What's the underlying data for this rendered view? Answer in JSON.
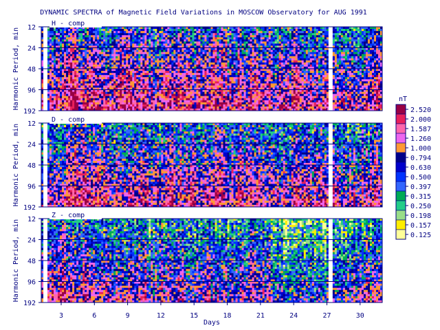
{
  "chart_data": {
    "type": "heatmap",
    "title": "DYNAMIC SPECTRA of Magnetic Field Variations in MOSCOW Observatory for AUG 1991",
    "xlabel": "Days",
    "ylabel": "Harmonic Period, min",
    "x_ticks": [
      "3",
      "6",
      "9",
      "12",
      "15",
      "18",
      "21",
      "24",
      "27",
      "30"
    ],
    "x_tick_values": [
      3,
      6,
      9,
      12,
      15,
      18,
      21,
      24,
      27,
      30
    ],
    "xlim": [
      1.2,
      32
    ],
    "y_ticks": [
      "12",
      "24",
      "48",
      "96",
      "192"
    ],
    "y_scale": "log",
    "colorbar": {
      "unit": "nT",
      "levels": [
        "2.520",
        "2.000",
        "1.587",
        "1.260",
        "1.000",
        "0.794",
        "0.630",
        "0.500",
        "0.397",
        "0.315",
        "0.250",
        "0.198",
        "0.157",
        "0.125"
      ],
      "colors": [
        "#990044",
        "#e8205a",
        "#ff66aa",
        "#ee66ee",
        "#ff9933",
        "#000088",
        "#0000cc",
        "#0033ff",
        "#3366ff",
        "#00aa55",
        "#22cc88",
        "#99dd88",
        "#ffee00",
        "#ffff99"
      ]
    },
    "panels": [
      {
        "label": "H - comp",
        "gaps": [
          [
            1.3,
            1.7
          ],
          [
            27.2,
            27.6
          ]
        ],
        "intensity_trend": [
          0.55,
          0.58,
          0.62,
          0.66,
          0.62,
          0.58,
          0.56,
          0.6,
          0.64,
          0.6,
          0.55,
          0.62,
          0.66,
          0.62,
          0.6,
          0.64,
          0.62,
          0.56,
          0.62,
          0.66,
          0.6,
          0.56,
          0.55,
          0.6,
          0.58,
          0.56,
          0.52,
          0.5,
          0.52,
          0.55,
          0.6,
          0.62
        ]
      },
      {
        "label": "D - comp",
        "gaps": [
          [
            1.3,
            1.7
          ],
          [
            27.2,
            27.6
          ]
        ],
        "intensity_trend": [
          0.5,
          0.54,
          0.58,
          0.6,
          0.58,
          0.54,
          0.52,
          0.54,
          0.58,
          0.56,
          0.52,
          0.58,
          0.6,
          0.58,
          0.56,
          0.58,
          0.56,
          0.52,
          0.56,
          0.6,
          0.56,
          0.52,
          0.5,
          0.54,
          0.52,
          0.5,
          0.48,
          0.46,
          0.5,
          0.54,
          0.58,
          0.6
        ]
      },
      {
        "label": "Z - comp",
        "gaps": [
          [
            1.3,
            1.7
          ],
          [
            27.2,
            27.6
          ]
        ],
        "intensity_trend": [
          0.48,
          0.5,
          0.54,
          0.56,
          0.52,
          0.48,
          0.46,
          0.44,
          0.48,
          0.46,
          0.44,
          0.5,
          0.52,
          0.48,
          0.44,
          0.46,
          0.44,
          0.42,
          0.46,
          0.5,
          0.46,
          0.34,
          0.3,
          0.28,
          0.3,
          0.32,
          0.36,
          0.4,
          0.42,
          0.44,
          0.46,
          0.48
        ]
      }
    ]
  }
}
